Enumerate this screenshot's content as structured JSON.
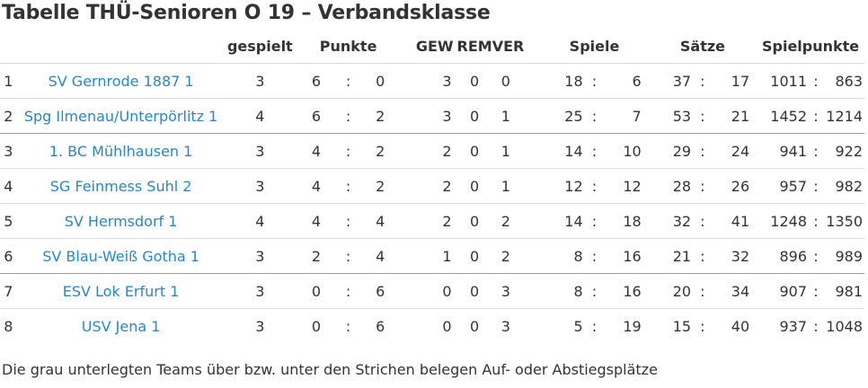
{
  "title": "Tabelle THÜ-Senioren O 19 – Verbandsklasse",
  "headers": {
    "played": "gespielt",
    "points": "Punkte",
    "won": "GEW",
    "drawn": "REM",
    "lost": "VER",
    "games": "Spiele",
    "sets": "Sätze",
    "game_points": "Spielpunkte"
  },
  "separator": ":",
  "rows": [
    {
      "rank": "1",
      "team": "SV Gernrode 1887 1",
      "played": "3",
      "pts_for": "6",
      "pts_against": "0",
      "won": "3",
      "drawn": "0",
      "lost": "0",
      "games_for": "18",
      "games_against": "6",
      "sets_for": "37",
      "sets_against": "17",
      "gp_for": "1011",
      "gp_against": "863"
    },
    {
      "rank": "2",
      "team": "Spg Ilmenau/Unterpörlitz 1",
      "played": "4",
      "pts_for": "6",
      "pts_against": "2",
      "won": "3",
      "drawn": "0",
      "lost": "1",
      "games_for": "25",
      "games_against": "7",
      "sets_for": "53",
      "sets_against": "21",
      "gp_for": "1452",
      "gp_against": "1214"
    },
    {
      "rank": "3",
      "team": "1. BC Mühlhausen 1",
      "played": "3",
      "pts_for": "4",
      "pts_against": "2",
      "won": "2",
      "drawn": "0",
      "lost": "1",
      "games_for": "14",
      "games_against": "10",
      "sets_for": "29",
      "sets_against": "24",
      "gp_for": "941",
      "gp_against": "922"
    },
    {
      "rank": "4",
      "team": "SG Feinmess Suhl 2",
      "played": "3",
      "pts_for": "4",
      "pts_against": "2",
      "won": "2",
      "drawn": "0",
      "lost": "1",
      "games_for": "12",
      "games_against": "12",
      "sets_for": "28",
      "sets_against": "26",
      "gp_for": "957",
      "gp_against": "982"
    },
    {
      "rank": "5",
      "team": "SV Hermsdorf 1",
      "played": "4",
      "pts_for": "4",
      "pts_against": "4",
      "won": "2",
      "drawn": "0",
      "lost": "2",
      "games_for": "14",
      "games_against": "18",
      "sets_for": "32",
      "sets_against": "41",
      "gp_for": "1248",
      "gp_against": "1350"
    },
    {
      "rank": "6",
      "team": "SV Blau-Weiß Gotha 1",
      "played": "3",
      "pts_for": "2",
      "pts_against": "4",
      "won": "1",
      "drawn": "0",
      "lost": "2",
      "games_for": "8",
      "games_against": "16",
      "sets_for": "21",
      "sets_against": "32",
      "gp_for": "896",
      "gp_against": "989"
    },
    {
      "rank": "7",
      "team": "ESV Lok Erfurt 1",
      "played": "3",
      "pts_for": "0",
      "pts_against": "6",
      "won": "0",
      "drawn": "0",
      "lost": "3",
      "games_for": "8",
      "games_against": "16",
      "sets_for": "20",
      "sets_against": "34",
      "gp_for": "907",
      "gp_against": "981"
    },
    {
      "rank": "8",
      "team": "USV Jena 1",
      "played": "3",
      "pts_for": "0",
      "pts_against": "6",
      "won": "0",
      "drawn": "0",
      "lost": "3",
      "games_for": "5",
      "games_against": "19",
      "sets_for": "15",
      "sets_against": "40",
      "gp_for": "937",
      "gp_against": "1048"
    }
  ],
  "footnote": "Die grau unterlegten Teams über bzw. unter den Strichen belegen Auf- oder Abstiegsplätze"
}
